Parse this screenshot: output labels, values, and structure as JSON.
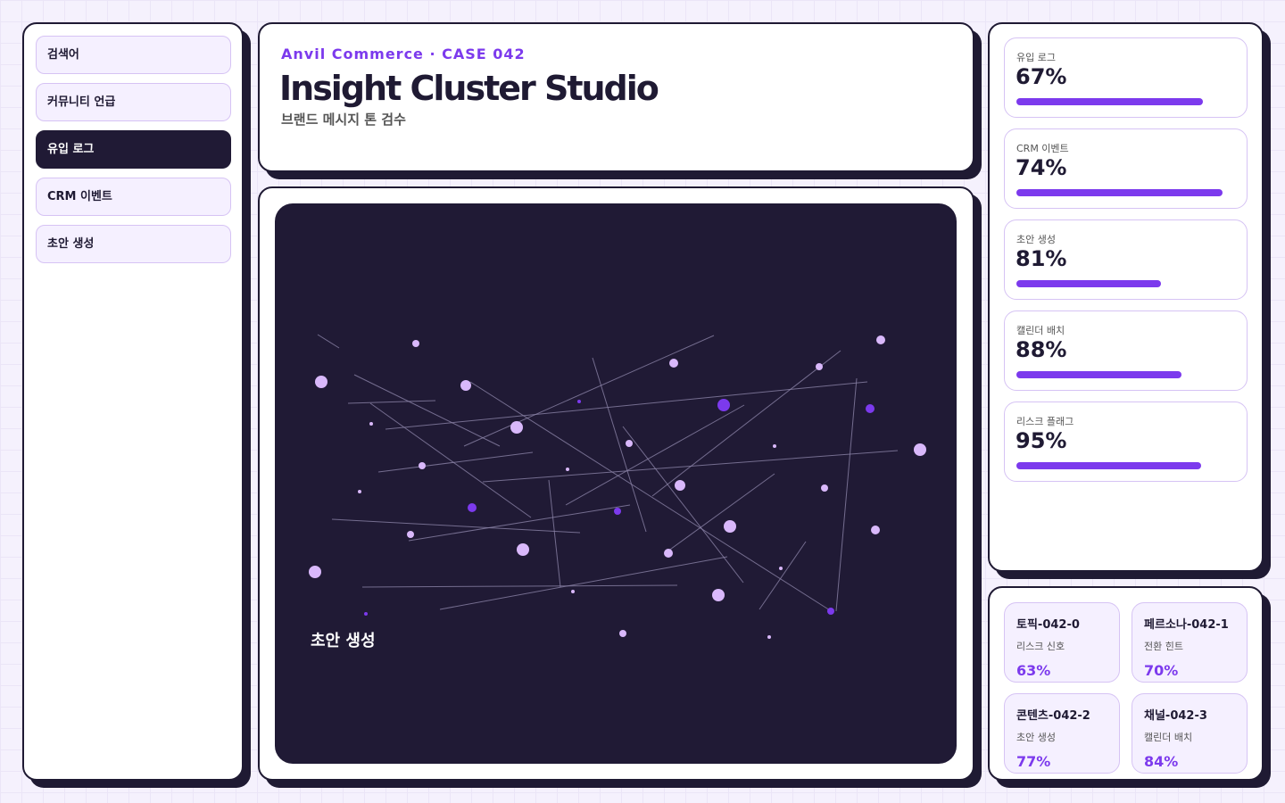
{
  "nav": {
    "items": [
      "검색어",
      "커뮤니티 언급",
      "유입 로그",
      "CRM 이벤트",
      "초안 생성"
    ]
  },
  "header": {
    "eyebrow": "Anvil Commerce · CASE 042",
    "title": "Insight Cluster Studio",
    "subtitle": "브랜드 메시지 톤 검수"
  },
  "canvas": {
    "label": "초안 생성"
  },
  "metrics": [
    {
      "label": "유입 로그",
      "value": "67%"
    },
    {
      "label": "CRM 이벤트",
      "value": "74%"
    },
    {
      "label": "초안 생성",
      "value": "81%"
    },
    {
      "label": "캘린더 배치",
      "value": "88%"
    },
    {
      "label": "리스크 플래그",
      "value": "95%"
    }
  ],
  "cards": [
    {
      "title": "토픽-042-0",
      "subtitle": "리스크 신호",
      "value": "63%"
    },
    {
      "title": "페르소나-042-1",
      "subtitle": "전환 힌트",
      "value": "70%"
    },
    {
      "title": "콘텐츠-042-2",
      "subtitle": "초안 생성",
      "value": "77%"
    },
    {
      "title": "채널-042-3",
      "subtitle": "캘린더 배치",
      "value": "84%"
    }
  ]
}
